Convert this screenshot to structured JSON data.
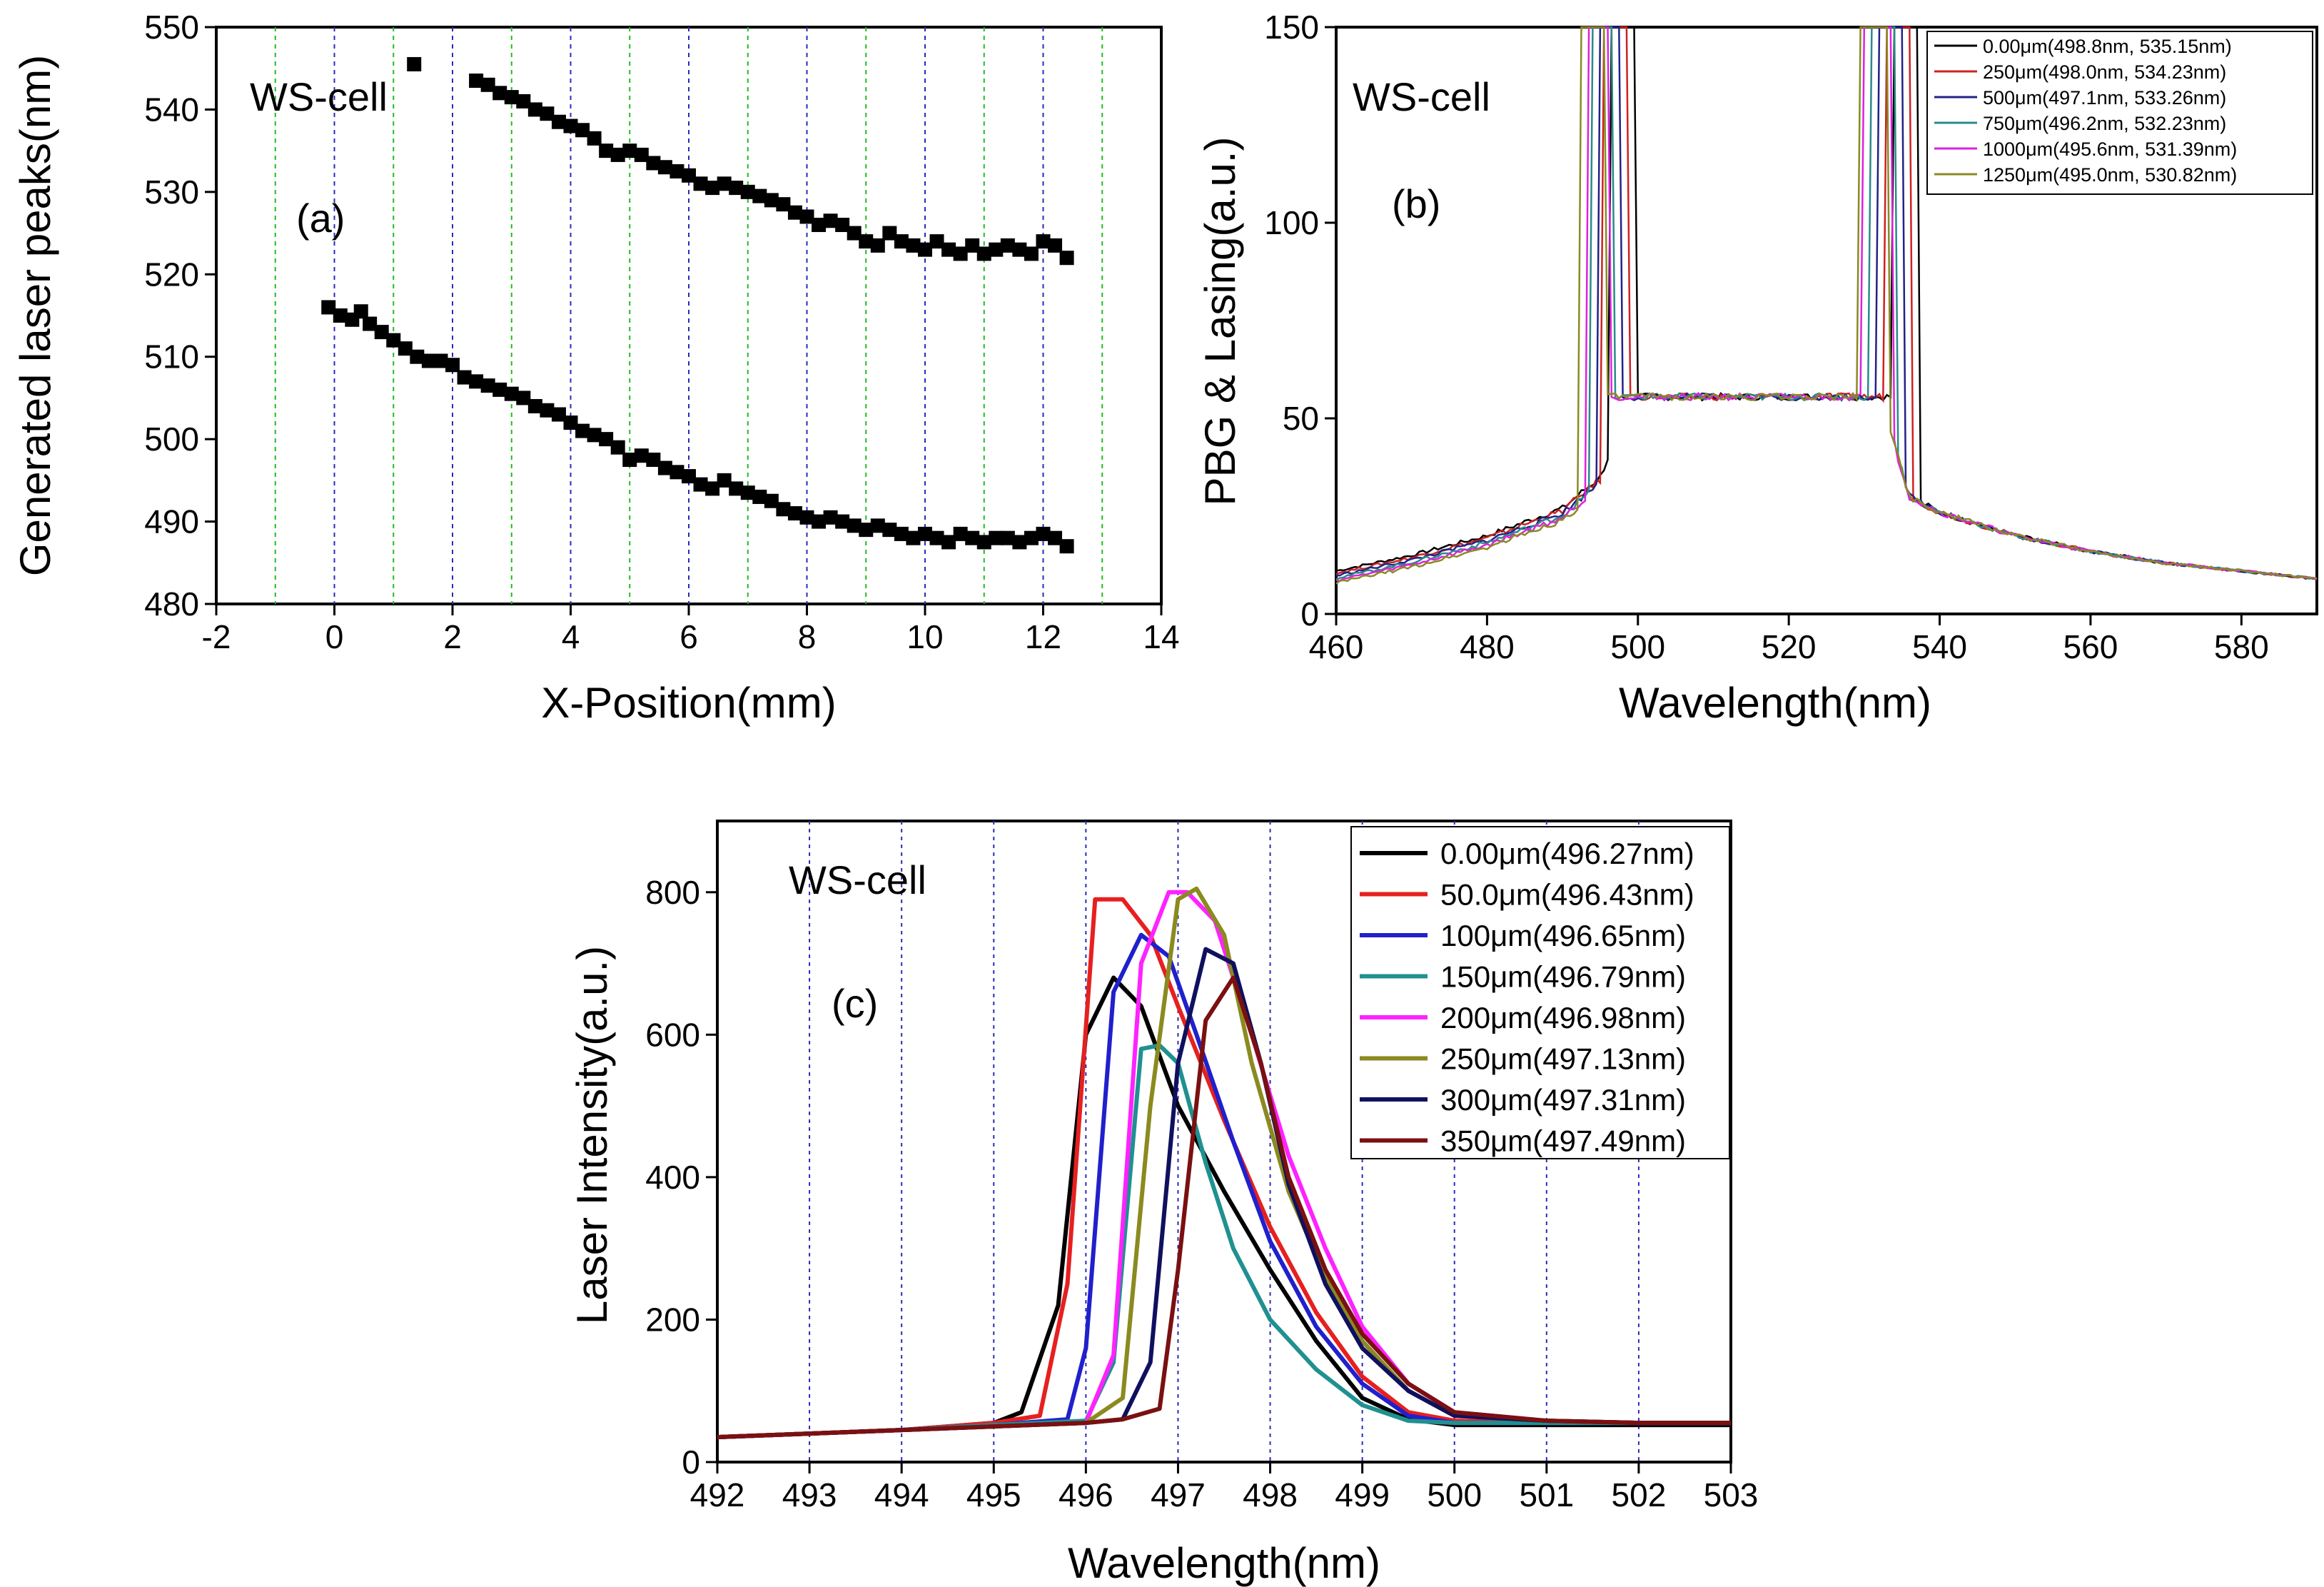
{
  "chart_data": [
    {
      "id": "a",
      "type": "scatter",
      "title": "",
      "annotation": "WS-cell",
      "panel_label": "(a)",
      "xlabel": "X-Position(mm)",
      "ylabel": "Generated laser peaks(nm)",
      "xlim": [
        -2,
        14
      ],
      "ylim": [
        480,
        550
      ],
      "xticks": [
        -2,
        0,
        2,
        4,
        6,
        8,
        10,
        12,
        14
      ],
      "yticks": [
        480,
        490,
        500,
        510,
        520,
        530,
        540,
        550
      ],
      "grid_x_odd": [
        -1,
        1,
        3,
        5,
        7,
        9,
        11,
        13
      ],
      "grid_x_even": [
        0,
        2,
        4,
        6,
        8,
        10,
        12
      ],
      "grid_colors": {
        "odd": "#22bb22",
        "even": "#2b2bb8"
      },
      "series": [
        {
          "name": "upper branch",
          "color": "#000000",
          "points": [
            [
              1.35,
              545.5
            ],
            [
              2.4,
              543.5
            ],
            [
              2.6,
              543
            ],
            [
              2.8,
              542
            ],
            [
              3.0,
              541.5
            ],
            [
              3.2,
              541
            ],
            [
              3.4,
              540
            ],
            [
              3.6,
              539.5
            ],
            [
              3.8,
              538.5
            ],
            [
              4.0,
              538
            ],
            [
              4.2,
              537.5
            ],
            [
              4.4,
              536.5
            ],
            [
              4.6,
              535
            ],
            [
              4.8,
              534.5
            ],
            [
              5.0,
              535
            ],
            [
              5.2,
              534.5
            ],
            [
              5.4,
              533.5
            ],
            [
              5.6,
              533
            ],
            [
              5.8,
              532.5
            ],
            [
              6.0,
              532
            ],
            [
              6.2,
              531
            ],
            [
              6.4,
              530.5
            ],
            [
              6.6,
              531
            ],
            [
              6.8,
              530.5
            ],
            [
              7.0,
              530
            ],
            [
              7.2,
              529.5
            ],
            [
              7.4,
              529
            ],
            [
              7.6,
              528.5
            ],
            [
              7.8,
              527.5
            ],
            [
              8.0,
              527
            ],
            [
              8.2,
              526
            ],
            [
              8.4,
              526.5
            ],
            [
              8.6,
              526
            ],
            [
              8.8,
              525
            ],
            [
              9.0,
              524
            ],
            [
              9.2,
              523.5
            ],
            [
              9.4,
              525
            ],
            [
              9.6,
              524
            ],
            [
              9.8,
              523.5
            ],
            [
              10.0,
              523
            ],
            [
              10.2,
              524
            ],
            [
              10.4,
              523
            ],
            [
              10.6,
              522.5
            ],
            [
              10.8,
              523.5
            ],
            [
              11.0,
              522.5
            ],
            [
              11.2,
              523
            ],
            [
              11.4,
              523.5
            ],
            [
              11.6,
              523
            ],
            [
              11.8,
              522.5
            ],
            [
              12.0,
              524
            ],
            [
              12.2,
              523.5
            ],
            [
              12.4,
              522
            ]
          ]
        },
        {
          "name": "lower branch",
          "color": "#000000",
          "points": [
            [
              -0.1,
              516
            ],
            [
              0.1,
              515
            ],
            [
              0.3,
              514.5
            ],
            [
              0.45,
              515.5
            ],
            [
              0.6,
              514
            ],
            [
              0.8,
              513
            ],
            [
              1.0,
              512
            ],
            [
              1.2,
              511
            ],
            [
              1.4,
              510
            ],
            [
              1.6,
              509.5
            ],
            [
              1.8,
              509.5
            ],
            [
              2.0,
              509
            ],
            [
              2.2,
              507.5
            ],
            [
              2.4,
              507
            ],
            [
              2.6,
              506.5
            ],
            [
              2.8,
              506
            ],
            [
              3.0,
              505.5
            ],
            [
              3.2,
              505
            ],
            [
              3.4,
              504
            ],
            [
              3.6,
              503.5
            ],
            [
              3.8,
              503
            ],
            [
              4.0,
              502
            ],
            [
              4.2,
              501
            ],
            [
              4.4,
              500.5
            ],
            [
              4.6,
              500
            ],
            [
              4.8,
              499
            ],
            [
              5.0,
              497.5
            ],
            [
              5.2,
              498
            ],
            [
              5.4,
              497.5
            ],
            [
              5.6,
              496.5
            ],
            [
              5.8,
              496
            ],
            [
              6.0,
              495.5
            ],
            [
              6.2,
              494.5
            ],
            [
              6.4,
              494
            ],
            [
              6.6,
              495
            ],
            [
              6.8,
              494
            ],
            [
              7.0,
              493.5
            ],
            [
              7.2,
              493
            ],
            [
              7.4,
              492.5
            ],
            [
              7.6,
              491.5
            ],
            [
              7.8,
              491
            ],
            [
              8.0,
              490.5
            ],
            [
              8.2,
              490
            ],
            [
              8.4,
              490.5
            ],
            [
              8.6,
              490
            ],
            [
              8.8,
              489.5
            ],
            [
              9.0,
              489
            ],
            [
              9.2,
              489.5
            ],
            [
              9.4,
              489
            ],
            [
              9.6,
              488.5
            ],
            [
              9.8,
              488
            ],
            [
              10.0,
              488.5
            ],
            [
              10.2,
              488
            ],
            [
              10.4,
              487.5
            ],
            [
              10.6,
              488.5
            ],
            [
              10.8,
              488
            ],
            [
              11.0,
              487.5
            ],
            [
              11.2,
              488
            ],
            [
              11.4,
              488
            ],
            [
              11.6,
              487.5
            ],
            [
              11.8,
              488
            ],
            [
              12.0,
              488.5
            ],
            [
              12.2,
              488
            ],
            [
              12.4,
              487
            ]
          ]
        }
      ]
    },
    {
      "id": "b",
      "type": "line",
      "title": "",
      "annotation": "WS-cell",
      "panel_label": "(b)",
      "xlabel": "Wavelength(nm)",
      "ylabel": "PBG & Lasing(a.u.)",
      "xlim": [
        460,
        590
      ],
      "ylim": [
        0,
        150
      ],
      "xticks": [
        460,
        480,
        500,
        520,
        540,
        560,
        580
      ],
      "yticks": [
        0,
        50,
        100,
        150
      ],
      "legend": "top-right",
      "series": [
        {
          "name": "0.00μm(498.8nm, 535.15nm)",
          "color": "#000000",
          "left_edge": 498.8,
          "right_edge": 535.15
        },
        {
          "name": "250μm(498.0nm, 534.23nm)",
          "color": "#cc2222",
          "left_edge": 498.0,
          "right_edge": 534.23
        },
        {
          "name": "500μm(497.1nm, 533.26nm)",
          "color": "#222288",
          "left_edge": 497.1,
          "right_edge": 533.26
        },
        {
          "name": "750μm(496.2nm, 532.23nm)",
          "color": "#2a8a8a",
          "left_edge": 496.2,
          "right_edge": 532.23
        },
        {
          "name": "1000μm(495.6nm, 531.39nm)",
          "color": "#dd22dd",
          "left_edge": 495.6,
          "right_edge": 531.39
        },
        {
          "name": "1250μm(495.0nm, 530.82nm)",
          "color": "#8a8a22",
          "left_edge": 495.0,
          "right_edge": 530.82
        }
      ],
      "baseline_profile": {
        "x": [
          460,
          470,
          480,
          490,
          495,
          497,
          500,
          510,
          520,
          530,
          533,
          536,
          540,
          550,
          560,
          570,
          580,
          590
        ],
        "y": [
          11,
          15,
          20,
          27,
          35,
          45,
          56,
          55,
          55,
          56,
          50,
          30,
          26,
          20,
          16,
          13,
          11,
          9
        ]
      }
    },
    {
      "id": "c",
      "type": "line",
      "title": "",
      "annotation": "WS-cell",
      "panel_label": "(c)",
      "xlabel": "Wavelength(nm)",
      "ylabel": "Laser Intensity(a.u.)",
      "xlim": [
        492,
        503
      ],
      "ylim": [
        0,
        900
      ],
      "xticks": [
        492,
        493,
        494,
        495,
        496,
        497,
        498,
        499,
        500,
        501,
        502,
        503
      ],
      "yticks": [
        0,
        200,
        400,
        600,
        800
      ],
      "legend": "top-right",
      "series": [
        {
          "name": "0.00μm(496.27nm)",
          "color": "#000000",
          "x": [
            492,
            493,
            494,
            495,
            495.3,
            495.7,
            496.0,
            496.3,
            496.6,
            497.0,
            497.5,
            498.0,
            498.5,
            499.0,
            499.5,
            500.0,
            501,
            502,
            503
          ],
          "y": [
            35,
            40,
            45,
            55,
            70,
            220,
            600,
            680,
            640,
            500,
            380,
            270,
            170,
            90,
            60,
            52,
            52,
            52,
            52
          ]
        },
        {
          "name": "50.0μm(496.43nm)",
          "color": "#e62020",
          "x": [
            492,
            493,
            494,
            495,
            495.5,
            495.8,
            496.1,
            496.4,
            496.7,
            497.0,
            497.5,
            498.0,
            498.5,
            499.0,
            499.5,
            500.0,
            501,
            502,
            503
          ],
          "y": [
            35,
            40,
            45,
            55,
            65,
            250,
            790,
            790,
            740,
            640,
            480,
            330,
            210,
            120,
            70,
            58,
            55,
            55,
            55
          ]
        },
        {
          "name": "100μm(496.65nm)",
          "color": "#2020cc",
          "x": [
            492,
            493,
            494,
            495,
            495.8,
            496.0,
            496.3,
            496.6,
            496.9,
            497.2,
            497.6,
            498.0,
            498.5,
            499.0,
            499.5,
            500.0,
            501,
            502,
            503
          ],
          "y": [
            35,
            40,
            45,
            52,
            60,
            160,
            660,
            740,
            710,
            600,
            450,
            310,
            190,
            110,
            65,
            55,
            55,
            55,
            55
          ]
        },
        {
          "name": "150μm(496.79nm)",
          "color": "#209090",
          "x": [
            492,
            493,
            494,
            495,
            496.0,
            496.3,
            496.6,
            496.8,
            497.0,
            497.3,
            497.6,
            498.0,
            498.5,
            499.0,
            499.5,
            500.0,
            501,
            502,
            503
          ],
          "y": [
            35,
            40,
            45,
            52,
            58,
            140,
            580,
            585,
            560,
            420,
            300,
            200,
            130,
            80,
            58,
            55,
            55,
            55,
            55
          ]
        },
        {
          "name": "200μm(496.98nm)",
          "color": "#ff22ff",
          "x": [
            492,
            493,
            494,
            495,
            496.0,
            496.3,
            496.6,
            496.9,
            497.1,
            497.4,
            497.8,
            498.2,
            498.6,
            499.0,
            499.5,
            500.0,
            501,
            502,
            503
          ],
          "y": [
            35,
            40,
            45,
            50,
            55,
            150,
            700,
            800,
            800,
            760,
            600,
            430,
            300,
            190,
            110,
            70,
            58,
            55,
            55
          ]
        },
        {
          "name": "250μm(497.13nm)",
          "color": "#8a8a20",
          "x": [
            492,
            493,
            494,
            495,
            496.0,
            496.4,
            496.7,
            497.0,
            497.2,
            497.5,
            497.8,
            498.2,
            498.6,
            499.0,
            499.5,
            500.0,
            501,
            502,
            503
          ],
          "y": [
            35,
            40,
            45,
            50,
            55,
            90,
            500,
            790,
            805,
            740,
            560,
            380,
            260,
            170,
            100,
            65,
            58,
            55,
            55
          ]
        },
        {
          "name": "300μm(497.31nm)",
          "color": "#101060",
          "x": [
            492,
            493,
            494,
            495,
            496.0,
            496.4,
            496.7,
            497.0,
            497.3,
            497.6,
            497.9,
            498.2,
            498.6,
            499.0,
            499.5,
            500.0,
            501,
            502,
            503
          ],
          "y": [
            35,
            40,
            45,
            50,
            55,
            60,
            140,
            560,
            720,
            700,
            560,
            390,
            250,
            160,
            100,
            65,
            58,
            55,
            55
          ]
        },
        {
          "name": "350μm(497.49nm)",
          "color": "#7a1010",
          "x": [
            492,
            493,
            494,
            495,
            496.0,
            496.4,
            496.8,
            497.0,
            497.3,
            497.6,
            497.9,
            498.2,
            498.6,
            499.0,
            499.5,
            500.0,
            501,
            502,
            503
          ],
          "y": [
            35,
            40,
            45,
            50,
            55,
            60,
            75,
            270,
            620,
            680,
            560,
            400,
            270,
            180,
            110,
            70,
            58,
            55,
            55
          ]
        }
      ],
      "grid_x": [
        493,
        494,
        495,
        496,
        497,
        498,
        499,
        500,
        501,
        502
      ],
      "grid_color": "#2b2bb8"
    }
  ]
}
